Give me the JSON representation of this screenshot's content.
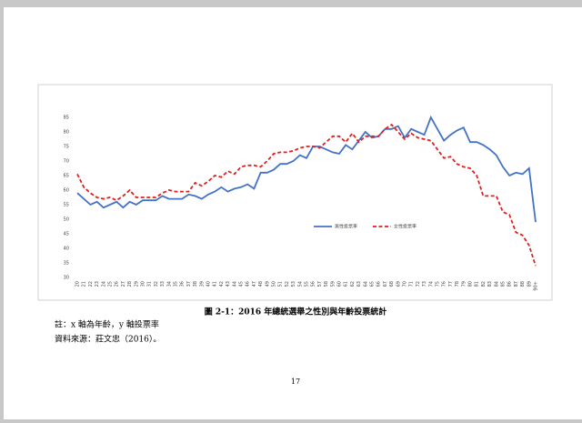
{
  "chart_data": {
    "type": "line",
    "categories": [
      "20",
      "21",
      "22",
      "23",
      "24",
      "25",
      "26",
      "27",
      "28",
      "29",
      "30",
      "31",
      "32",
      "33",
      "34",
      "35",
      "36",
      "37",
      "38",
      "39",
      "40",
      "41",
      "42",
      "43",
      "44",
      "45",
      "46",
      "47",
      "48",
      "49",
      "50",
      "51",
      "52",
      "53",
      "54",
      "55",
      "56",
      "57",
      "58",
      "59",
      "60",
      "61",
      "62",
      "63",
      "64",
      "65",
      "66",
      "67",
      "68",
      "69",
      "70",
      "71",
      "72",
      "73",
      "74",
      "75",
      "76",
      "77",
      "78",
      "79",
      "80",
      "81",
      "82",
      "83",
      "84",
      "85",
      "86",
      "87",
      "88",
      "89",
      "90+"
    ],
    "series": [
      {
        "name": "男性投票率",
        "color": "#4472c4",
        "dash": false,
        "values": [
          59,
          57,
          55,
          56,
          54,
          55,
          56,
          54,
          56,
          55,
          56.5,
          56.5,
          56.5,
          58,
          57,
          57,
          57,
          58.5,
          58,
          57,
          58.5,
          59.5,
          61,
          59.5,
          60.5,
          61,
          62,
          60.5,
          66,
          66,
          67,
          69,
          69,
          70,
          72,
          71,
          75,
          75,
          74,
          73,
          72.5,
          75.5,
          74,
          77,
          80,
          78,
          78.5,
          81,
          81,
          82,
          78,
          81,
          80,
          79,
          85,
          81,
          77,
          79,
          80.5,
          81.5,
          76.5,
          76.5,
          75.5,
          74,
          72,
          68,
          65,
          66,
          65.5,
          67.5,
          49
        ]
      },
      {
        "name": "女性投票率",
        "color": "#e02020",
        "dash": true,
        "values": [
          65.5,
          61,
          59,
          57.5,
          57,
          57.5,
          56.5,
          58,
          60,
          57.5,
          57.5,
          57.5,
          57.5,
          59,
          60,
          59.5,
          59.5,
          59.5,
          62.5,
          61.5,
          63,
          65,
          64.5,
          66.5,
          65.5,
          68,
          68.5,
          68.5,
          68,
          70,
          72.5,
          73,
          73,
          73.5,
          74.5,
          75,
          75,
          74.5,
          76.5,
          78.5,
          78.5,
          76.5,
          79.5,
          76.5,
          78.5,
          78.5,
          78.5,
          81,
          82.5,
          80,
          77.5,
          79.5,
          78,
          77.5,
          77,
          74,
          71,
          71.5,
          69,
          68,
          67.5,
          65,
          58,
          58,
          58,
          52.5,
          51.5,
          45.5,
          44.5,
          41,
          34
        ]
      }
    ],
    "ylim": [
      30,
      85
    ],
    "yticks": [
      30,
      35,
      40,
      45,
      50,
      55,
      60,
      65,
      70,
      75,
      80,
      85
    ],
    "grid": false
  },
  "caption": "圖 2-1：2016 年總統選舉之性別與年齡投票統計",
  "notes": [
    "註：x 軸為年齡，y 軸投票率",
    "資料來源：莊文忠（2016）。"
  ],
  "page_number": "17"
}
